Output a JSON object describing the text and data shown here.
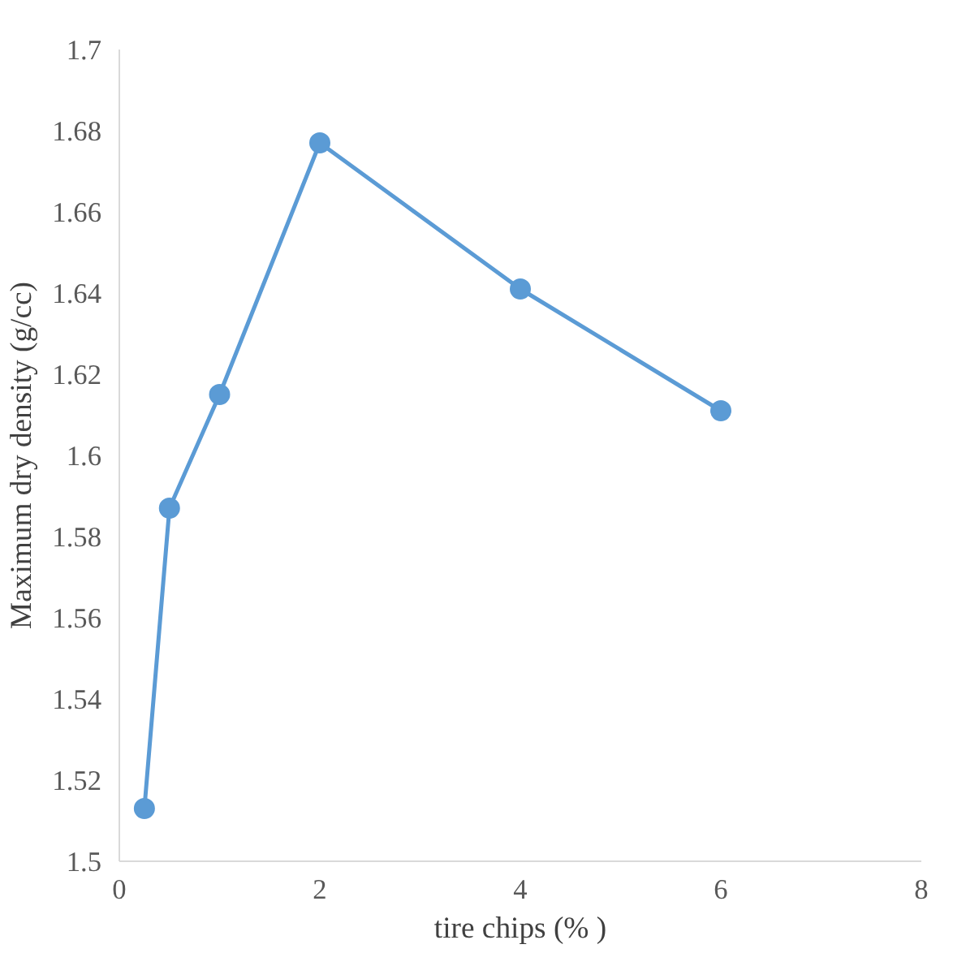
{
  "chart_data": {
    "type": "line",
    "xlabel": "tire chips (% )",
    "ylabel": "Maximum dry density (g/cc)",
    "x": [
      0.25,
      0.5,
      1,
      2,
      4,
      6
    ],
    "series": [
      {
        "color": "#5b9bd5",
        "values": [
          1.513,
          1.587,
          1.615,
          1.677,
          1.641,
          1.611
        ]
      }
    ],
    "xlim": [
      0,
      8
    ],
    "xticks": [
      0,
      2,
      4,
      6,
      8
    ],
    "ylim": [
      1.5,
      1.7
    ],
    "yticks": [
      1.5,
      1.52,
      1.54,
      1.56,
      1.58,
      1.6,
      1.62,
      1.64,
      1.66,
      1.68,
      1.7
    ],
    "marker": "circle",
    "line_style": "solid"
  }
}
